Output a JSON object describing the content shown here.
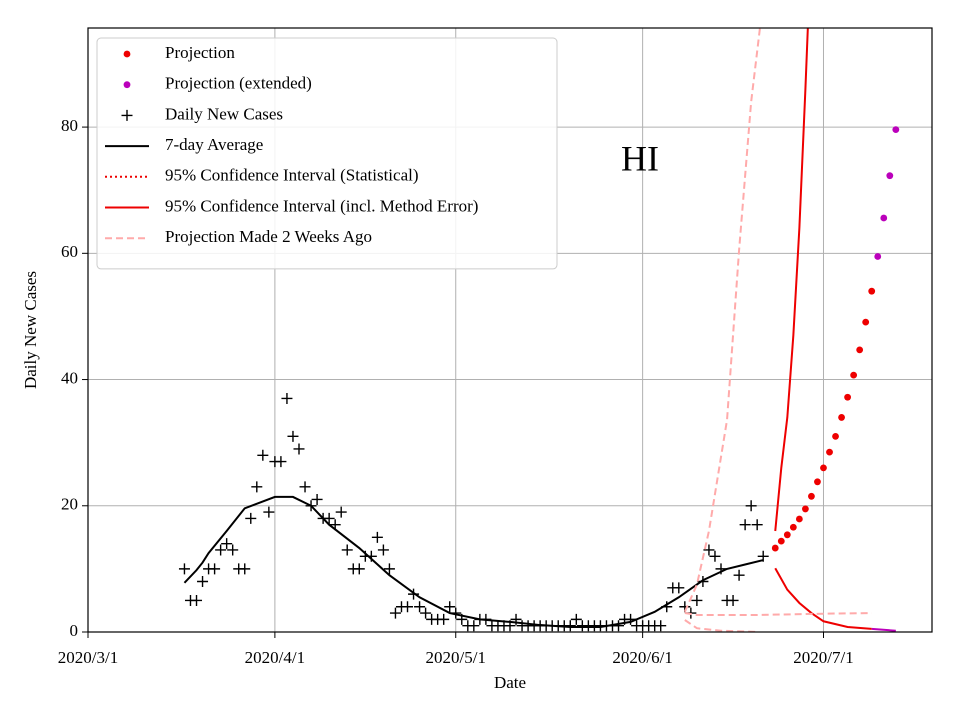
{
  "chart_data": {
    "type": "line",
    "annotation": "HI",
    "xlabel": "Date",
    "ylabel": "Daily New Cases",
    "xlim": [
      "2020/3/1",
      "2020/7/19"
    ],
    "xticks": [
      "2020/3/1",
      "2020/4/1",
      "2020/5/1",
      "2020/6/1",
      "2020/7/1"
    ],
    "ylim": [
      0,
      95.7
    ],
    "yticks": [
      0,
      20,
      40,
      60,
      80
    ],
    "grid": true,
    "legend": "upper left",
    "series": [
      {
        "name": "Projection",
        "color": "#ee0000",
        "style": "dots",
        "x": [
          "2020/6/23",
          "2020/6/24",
          "2020/6/25",
          "2020/6/26",
          "2020/6/27",
          "2020/6/28",
          "2020/6/29",
          "2020/6/30",
          "2020/7/1",
          "2020/7/2",
          "2020/7/3",
          "2020/7/4",
          "2020/7/5",
          "2020/7/6",
          "2020/7/7",
          "2020/7/8",
          "2020/7/9"
        ],
        "values": [
          13.3,
          14.4,
          15.4,
          16.6,
          17.9,
          19.5,
          21.5,
          23.8,
          26,
          28.5,
          31,
          34,
          37.2,
          40.7,
          44.7,
          49.1,
          54
        ]
      },
      {
        "name": "Projection (extended)",
        "color": "#bb00bb",
        "style": "dots",
        "x": [
          "2020/7/10",
          "2020/7/11",
          "2020/7/12",
          "2020/7/13"
        ],
        "values": [
          59.5,
          65.6,
          72.3,
          79.6
        ]
      },
      {
        "name": "Daily New Cases",
        "color": "#000000",
        "style": "plus",
        "x": [
          "2020/3/17",
          "2020/3/18",
          "2020/3/19",
          "2020/3/20",
          "2020/3/21",
          "2020/3/22",
          "2020/3/23",
          "2020/3/24",
          "2020/3/25",
          "2020/3/26",
          "2020/3/27",
          "2020/3/28",
          "2020/3/29",
          "2020/3/30",
          "2020/3/31",
          "2020/4/1",
          "2020/4/2",
          "2020/4/3",
          "2020/4/4",
          "2020/4/5",
          "2020/4/6",
          "2020/4/7",
          "2020/4/8",
          "2020/4/9",
          "2020/4/10",
          "2020/4/11",
          "2020/4/12",
          "2020/4/13",
          "2020/4/14",
          "2020/4/15",
          "2020/4/16",
          "2020/4/17",
          "2020/4/18",
          "2020/4/19",
          "2020/4/20",
          "2020/4/21",
          "2020/4/22",
          "2020/4/23",
          "2020/4/24",
          "2020/4/25",
          "2020/4/26",
          "2020/4/27",
          "2020/4/28",
          "2020/4/29",
          "2020/4/30",
          "2020/5/1",
          "2020/5/2",
          "2020/5/3",
          "2020/5/4",
          "2020/5/5",
          "2020/5/6",
          "2020/5/7",
          "2020/5/8",
          "2020/5/9",
          "2020/5/10",
          "2020/5/11",
          "2020/5/12",
          "2020/5/13",
          "2020/5/14",
          "2020/5/15",
          "2020/5/16",
          "2020/5/17",
          "2020/5/18",
          "2020/5/19",
          "2020/5/20",
          "2020/5/21",
          "2020/5/22",
          "2020/5/23",
          "2020/5/24",
          "2020/5/25",
          "2020/5/26",
          "2020/5/27",
          "2020/5/28",
          "2020/5/29",
          "2020/5/30",
          "2020/5/31",
          "2020/6/1",
          "2020/6/2",
          "2020/6/3",
          "2020/6/4",
          "2020/6/5",
          "2020/6/6",
          "2020/6/7",
          "2020/6/8",
          "2020/6/9",
          "2020/6/10",
          "2020/6/11",
          "2020/6/12",
          "2020/6/13",
          "2020/6/14",
          "2020/6/15",
          "2020/6/16",
          "2020/6/17",
          "2020/6/18",
          "2020/6/19",
          "2020/6/20",
          "2020/6/21"
        ],
        "values": [
          10,
          5,
          5,
          8,
          10,
          10,
          13,
          14,
          13,
          10,
          10,
          18,
          23,
          28,
          19,
          27,
          27,
          37,
          31,
          29,
          23,
          20,
          21,
          18,
          18,
          17,
          19,
          13,
          10,
          10,
          12,
          12,
          15,
          13,
          10,
          3,
          4,
          4,
          6,
          4,
          3,
          2,
          2,
          2,
          4,
          3,
          2,
          1,
          1,
          2,
          2,
          1,
          1,
          1,
          1,
          2,
          1,
          1,
          1,
          1,
          1,
          1,
          1,
          1,
          1,
          2,
          1,
          1,
          1,
          1,
          1,
          1,
          1,
          2,
          2,
          1,
          1,
          1,
          1,
          1,
          4,
          7,
          7,
          4,
          3,
          5,
          8,
          13,
          12,
          10,
          5,
          5,
          9,
          17,
          20,
          17,
          12
        ]
      },
      {
        "name": "7-day Average",
        "color": "#000000",
        "style": "line",
        "x": [
          "2020/3/17",
          "2020/3/19",
          "2020/3/20",
          "2020/3/21",
          "2020/3/24",
          "2020/3/27",
          "2020/4/1",
          "2020/4/4",
          "2020/4/7",
          "2020/4/10",
          "2020/4/15",
          "2020/4/20",
          "2020/4/25",
          "2020/4/30",
          "2020/5/5",
          "2020/5/10",
          "2020/5/15",
          "2020/5/20",
          "2020/5/25",
          "2020/5/30",
          "2020/6/3",
          "2020/6/7",
          "2020/6/11",
          "2020/6/15",
          "2020/6/18",
          "2020/6/21"
        ],
        "values": [
          7.8,
          9.8,
          11,
          12.5,
          16,
          19.6,
          21.4,
          21.4,
          20,
          17,
          13.3,
          9,
          5.5,
          3,
          2,
          1.6,
          1.1,
          0.8,
          0.8,
          1.6,
          3.2,
          5.5,
          8.2,
          10,
          10.7,
          11.4
        ]
      },
      {
        "name": "95% Confidence Interval (Statistical)",
        "color": "#ee0000",
        "style": "dotted",
        "x": [],
        "values": []
      },
      {
        "name": "95% Confidence Interval (incl. Method Error)",
        "color": "#ee0000",
        "style": "line",
        "x": [
          "2020/6/23",
          "2020/6/24",
          "2020/6/25",
          "2020/6/26",
          "2020/6/27",
          "2020/6/28",
          "2020/6/29"
        ],
        "values": [
          16,
          26,
          34,
          47,
          64,
          86,
          110
        ]
      },
      {
        "color": "#ee0000",
        "style": "line",
        "x": [
          "2020/6/23",
          "2020/6/25",
          "2020/6/27",
          "2020/6/29",
          "2020/7/1",
          "2020/7/5",
          "2020/7/9"
        ],
        "values": [
          10.1,
          6.7,
          4.6,
          3,
          1.7,
          0.8,
          0.5
        ]
      },
      {
        "color": "#bb00bb",
        "style": "line",
        "x": [
          "2020/7/9",
          "2020/7/13"
        ],
        "values": [
          0.5,
          0.2
        ]
      },
      {
        "name": "Projection Made 2 Weeks Ago",
        "color": "#ffaaaa",
        "style": "dashed",
        "x": [
          "2020/6/8",
          "2020/6/10",
          "2020/6/20",
          "2020/7/1",
          "2020/7/9"
        ],
        "values": [
          3,
          2.7,
          2.7,
          2.9,
          3
        ]
      },
      {
        "color": "#ffaaaa",
        "style": "dashed",
        "x": [
          "2020/6/8",
          "2020/6/10",
          "2020/6/12",
          "2020/6/15",
          "2020/6/17",
          "2020/6/19",
          "2020/6/21"
        ],
        "values": [
          3.2,
          7.5,
          16,
          33.6,
          60.5,
          84,
          100
        ]
      },
      {
        "color": "#ffaaaa",
        "style": "dashed",
        "x": [
          "2020/6/8",
          "2020/6/10",
          "2020/6/14",
          "2020/6/20"
        ],
        "values": [
          1.9,
          0.6,
          0.2,
          0
        ]
      }
    ]
  }
}
